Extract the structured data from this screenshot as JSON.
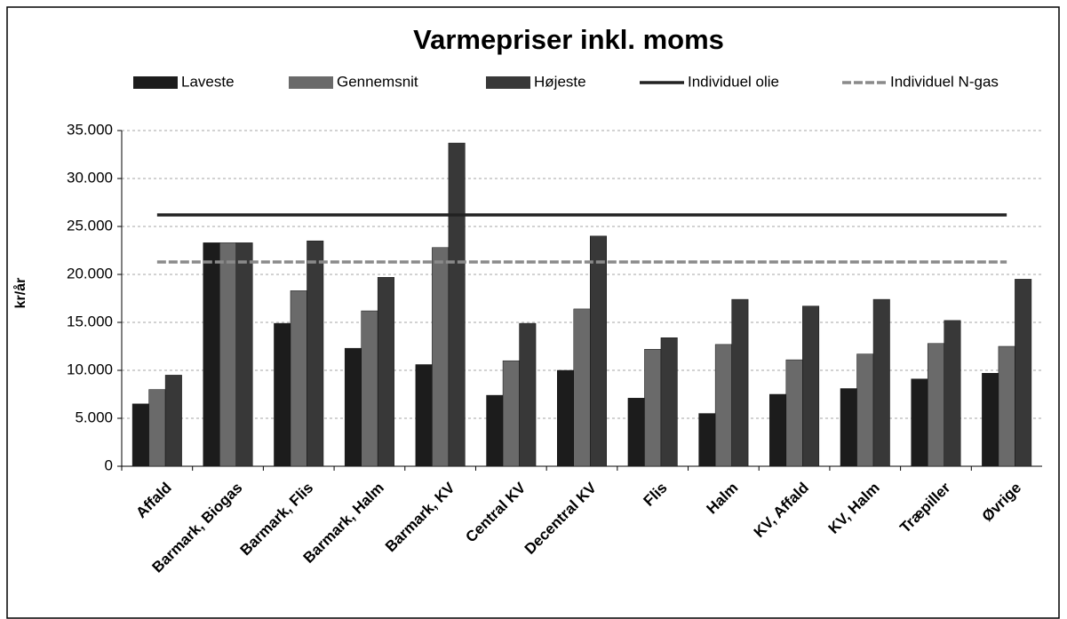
{
  "chart_data": {
    "type": "bar",
    "title": "Varmepriser inkl. moms",
    "y_label": "kr/år",
    "categories": [
      "Affald",
      "Barmark, Biogas",
      "Barmark, Flis",
      "Barmark, Halm",
      "Barmark, KV",
      "Central KV",
      "Decentral KV",
      "Flis",
      "Halm",
      "KV, Affald",
      "KV, Halm",
      "Træpiller",
      "Øvrige"
    ],
    "series": [
      {
        "name": "Laveste",
        "color": "#1c1c1c",
        "values": [
          6500,
          23300,
          14900,
          12300,
          10600,
          7400,
          10000,
          7100,
          5500,
          7500,
          8100,
          9100,
          9700
        ]
      },
      {
        "name": "Gennemsnit",
        "color": "#6a6a6a",
        "values": [
          8000,
          23300,
          18300,
          16200,
          22800,
          11000,
          16400,
          12200,
          12700,
          11100,
          11700,
          12800,
          12500
        ]
      },
      {
        "name": "Højeste",
        "color": "#383838",
        "values": [
          9500,
          23300,
          23500,
          19700,
          33700,
          14900,
          24000,
          13400,
          17400,
          16700,
          17400,
          15200,
          19500
        ]
      },
      {
        "name": "Individuel olie",
        "type": "line",
        "color": "#222222",
        "values": [
          26200,
          26200,
          26200,
          26200,
          26200,
          26200,
          26200,
          26200,
          26200,
          26200,
          26200,
          26200,
          26200
        ]
      },
      {
        "name": "Individuel N-gas",
        "type": "line",
        "color": "#8a8a8a",
        "dashed": true,
        "values": [
          21300,
          21300,
          21300,
          21300,
          21300,
          21300,
          21300,
          21300,
          21300,
          21300,
          21300,
          21300,
          21300
        ]
      }
    ],
    "ylim": [
      0,
      35000
    ],
    "yticks": [
      0,
      {
        "value": 5000,
        "label": "5.000"
      },
      {
        "value": 10000,
        "label": "10.000"
      },
      {
        "value": 15000,
        "label": "15.000"
      },
      {
        "value": 20000,
        "label": "20.000"
      },
      {
        "value": 25000,
        "label": "25.000"
      },
      {
        "value": 30000,
        "label": "30.000"
      },
      {
        "value": 35000,
        "label": "35.000"
      }
    ],
    "grid": true,
    "legend": "top"
  }
}
